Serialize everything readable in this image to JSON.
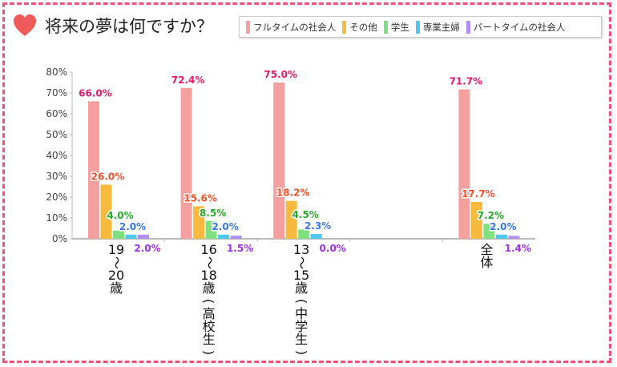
{
  "title": "将来の夢は何ですか？",
  "colors": {
    "frame": "#f0507a",
    "heart": "#f05a5a"
  },
  "chart_data": {
    "type": "bar",
    "title": "将来の夢は何ですか？",
    "categories": [
      "19〜20歳",
      "16〜18歳(高校生)",
      "13〜15歳(中学生)",
      "",
      "全体"
    ],
    "category_lines": [
      [
        "19",
        "〜",
        "20",
        "歳"
      ],
      [
        "16",
        "〜",
        "18",
        "歳",
        "(",
        "高",
        "校",
        "生",
        ")"
      ],
      [
        "13",
        "〜",
        "15",
        "歳",
        "(",
        "中",
        "学",
        "生",
        ")"
      ],
      [],
      [
        "全",
        "体"
      ]
    ],
    "series": [
      {
        "name": "フルタイムの社会人",
        "color": "#f4a09e",
        "label_color": "#e8196a",
        "values": [
          66.0,
          72.4,
          75.0,
          null,
          71.7
        ]
      },
      {
        "name": "その他",
        "color": "#f7b93e",
        "label_color": "#f0502a",
        "values": [
          26.0,
          15.6,
          18.2,
          null,
          17.7
        ]
      },
      {
        "name": "学生",
        "color": "#7ee07e",
        "label_color": "#2aa82a",
        "values": [
          4.0,
          8.5,
          4.5,
          null,
          7.2
        ]
      },
      {
        "name": "専業主婦",
        "color": "#4fc8ee",
        "label_color": "#3a78e0",
        "values": [
          2.0,
          2.0,
          2.3,
          null,
          2.0
        ]
      },
      {
        "name": "パートタイムの社会人",
        "color": "#b08ef0",
        "label_color": "#9a30e8",
        "values": [
          2.0,
          1.5,
          0.0,
          null,
          1.4
        ]
      }
    ],
    "ylim": [
      0,
      80
    ],
    "yticks": [
      "0%",
      "10%",
      "20%",
      "30%",
      "40%",
      "50%",
      "60%",
      "70%",
      "80%"
    ],
    "legend": "top-right",
    "grid": false
  }
}
